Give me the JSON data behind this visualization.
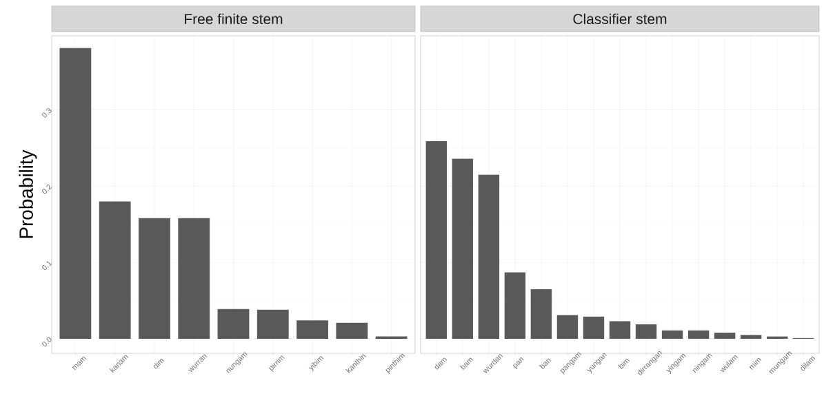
{
  "chart_data": [
    {
      "type": "bar",
      "title": "Free finite stem",
      "ylabel": "Probability",
      "color": "#595959",
      "grid": true,
      "categories": [
        "mam",
        "kanam",
        "dim",
        "wurran",
        "nungam",
        "pirrim",
        "yibim",
        "kanthin",
        "pinthim"
      ],
      "values": [
        0.381,
        0.18,
        0.158,
        0.158,
        0.039,
        0.038,
        0.024,
        0.021,
        0.003
      ],
      "ylim": [
        -0.019,
        0.397
      ],
      "yticks": [
        {
          "value": 0,
          "label": "0.0"
        },
        {
          "value": 0.1,
          "label": "0.1"
        },
        {
          "value": 0.2,
          "label": "0.2"
        },
        {
          "value": 0.3,
          "label": "0.3"
        }
      ]
    },
    {
      "type": "bar",
      "title": "Classifier stem",
      "color": "#595959",
      "grid": true,
      "tick_labels": "x",
      "categories": [
        "dam",
        "bam",
        "wurdan",
        "pan",
        "ban",
        "pangam",
        "yungan",
        "bim",
        "dirrangan",
        "yingam",
        "ningam",
        "wulam",
        "mim",
        "mungam",
        "dilam"
      ],
      "values": [
        0.259,
        0.236,
        0.215,
        0.087,
        0.065,
        0.031,
        0.029,
        0.023,
        0.019,
        0.011,
        0.011,
        0.008,
        0.005,
        0.003,
        0.001
      ],
      "ylim": [
        -0.019,
        0.397
      ],
      "yticks": [
        0,
        0.1,
        0.2,
        0.3
      ]
    }
  ]
}
